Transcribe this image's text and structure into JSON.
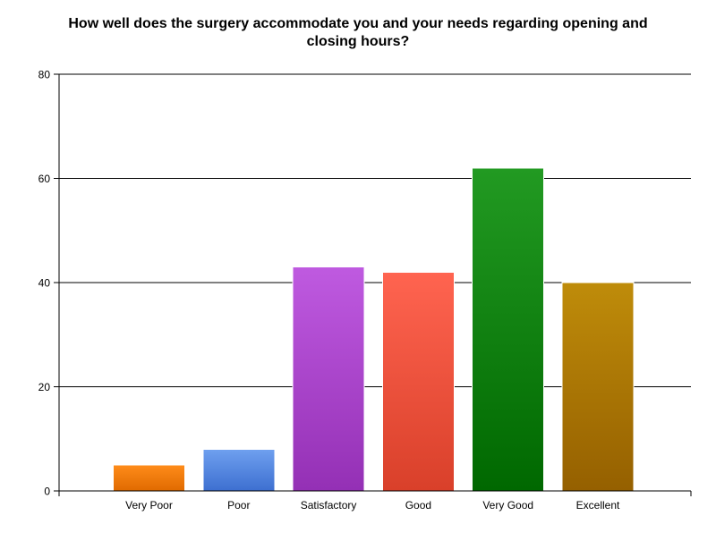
{
  "chart_data": {
    "type": "bar",
    "title": "How well does the surgery accommodate you and your needs regarding opening and closing hours?",
    "xlabel": "",
    "ylabel": "",
    "categories": [
      "Very Poor",
      "Poor",
      "Satisfactory",
      "Good",
      "Very Good",
      "Excellent"
    ],
    "values": [
      5,
      8,
      43,
      42,
      62,
      40
    ],
    "ylim": [
      0,
      80
    ],
    "yticks": [
      0,
      20,
      40,
      60,
      80
    ],
    "grid": true,
    "legend": "none",
    "bar_colors": [
      [
        "#ff8c1a",
        "#e06a00"
      ],
      [
        "#6fa0ef",
        "#3d6fd0"
      ],
      [
        "#bf5ae0",
        "#9430b5"
      ],
      [
        "#ff6450",
        "#d9402a"
      ],
      [
        "#229a22",
        "#006800"
      ],
      [
        "#bf8c0a",
        "#956000"
      ]
    ]
  }
}
